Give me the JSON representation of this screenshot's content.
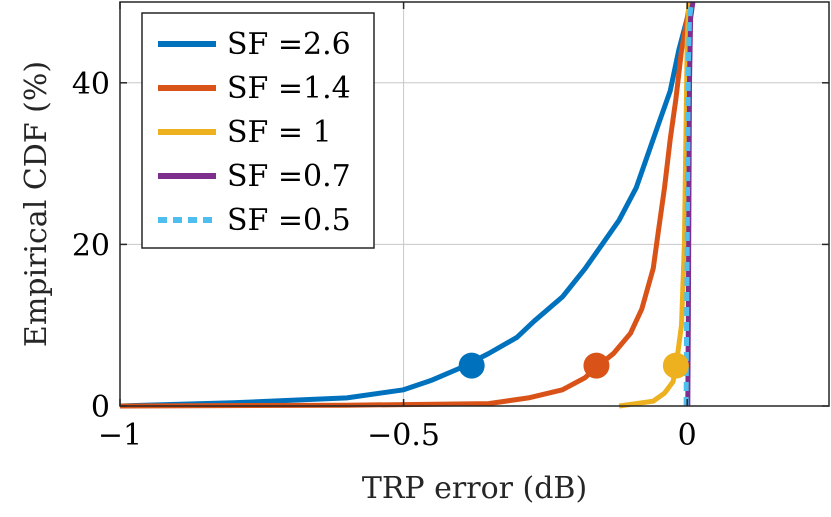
{
  "chart_data": {
    "type": "line",
    "xlabel": "TRP error (dB)",
    "ylabel": "Empirical CDF (%)",
    "xlim": [
      -1,
      0.25
    ],
    "ylim": [
      0,
      50
    ],
    "x_ticks": [
      -1,
      -0.5,
      0
    ],
    "x_tick_labels": [
      "−1",
      "−0.5",
      "0"
    ],
    "y_ticks": [
      0,
      20,
      40
    ],
    "y_tick_labels": [
      "0",
      "20",
      "40"
    ],
    "grid": true,
    "legend_position": "top-left",
    "series": [
      {
        "name": "SF =2.6",
        "color": "#0072BD",
        "dashed": false,
        "marker": {
          "x": -0.38,
          "y": 5
        },
        "points": [
          [
            -1,
            0
          ],
          [
            -0.8,
            0.4
          ],
          [
            -0.6,
            1.0
          ],
          [
            -0.5,
            2.0
          ],
          [
            -0.45,
            3.2
          ],
          [
            -0.4,
            4.7
          ],
          [
            -0.35,
            6.5
          ],
          [
            -0.3,
            8.5
          ],
          [
            -0.27,
            10.5
          ],
          [
            -0.22,
            13.5
          ],
          [
            -0.18,
            17.0
          ],
          [
            -0.15,
            20.0
          ],
          [
            -0.12,
            23.0
          ],
          [
            -0.09,
            27.0
          ],
          [
            -0.07,
            31.0
          ],
          [
            -0.05,
            35.0
          ],
          [
            -0.03,
            39.0
          ],
          [
            -0.015,
            44.0
          ],
          [
            0,
            48.0
          ],
          [
            0.01,
            50.0
          ]
        ]
      },
      {
        "name": "SF =1.4",
        "color": "#D95319",
        "dashed": false,
        "marker": {
          "x": -0.16,
          "y": 5
        },
        "points": [
          [
            -1,
            0
          ],
          [
            -0.6,
            0.1
          ],
          [
            -0.35,
            0.3
          ],
          [
            -0.28,
            1.0
          ],
          [
            -0.22,
            2.0
          ],
          [
            -0.18,
            3.5
          ],
          [
            -0.16,
            4.8
          ],
          [
            -0.13,
            6.5
          ],
          [
            -0.1,
            9.0
          ],
          [
            -0.08,
            12.0
          ],
          [
            -0.06,
            17.0
          ],
          [
            -0.05,
            22.0
          ],
          [
            -0.04,
            27.0
          ],
          [
            -0.03,
            33.0
          ],
          [
            -0.02,
            38.0
          ],
          [
            -0.01,
            44.0
          ],
          [
            0,
            48.0
          ],
          [
            0.005,
            50.0
          ]
        ]
      },
      {
        "name": "SF = 1",
        "color": "#EDB120",
        "dashed": false,
        "marker": {
          "x": -0.02,
          "y": 5
        },
        "points": [
          [
            -0.12,
            0
          ],
          [
            -0.06,
            0.6
          ],
          [
            -0.04,
            1.6
          ],
          [
            -0.025,
            3.0
          ],
          [
            -0.02,
            4.8
          ],
          [
            -0.01,
            10.0
          ],
          [
            -0.005,
            20.0
          ],
          [
            -0.002,
            35.0
          ],
          [
            0,
            45.0
          ],
          [
            0.003,
            50.0
          ]
        ]
      },
      {
        "name": "SF =0.7",
        "color": "#7E2F8E",
        "dashed": false,
        "points": [
          [
            0.001,
            0
          ],
          [
            0.002,
            10.0
          ],
          [
            0.003,
            25.0
          ],
          [
            0.004,
            40.0
          ],
          [
            0.006,
            48.0
          ],
          [
            0.01,
            50.0
          ]
        ]
      },
      {
        "name": "SF =0.5",
        "color": "#4DBEEE",
        "dashed": true,
        "points": [
          [
            -0.002,
            0
          ],
          [
            -0.001,
            10.0
          ],
          [
            0,
            20.0
          ],
          [
            0.001,
            32.0
          ],
          [
            0.002,
            42.0
          ],
          [
            0.004,
            48.0
          ],
          [
            0.008,
            50.0
          ]
        ]
      }
    ]
  }
}
